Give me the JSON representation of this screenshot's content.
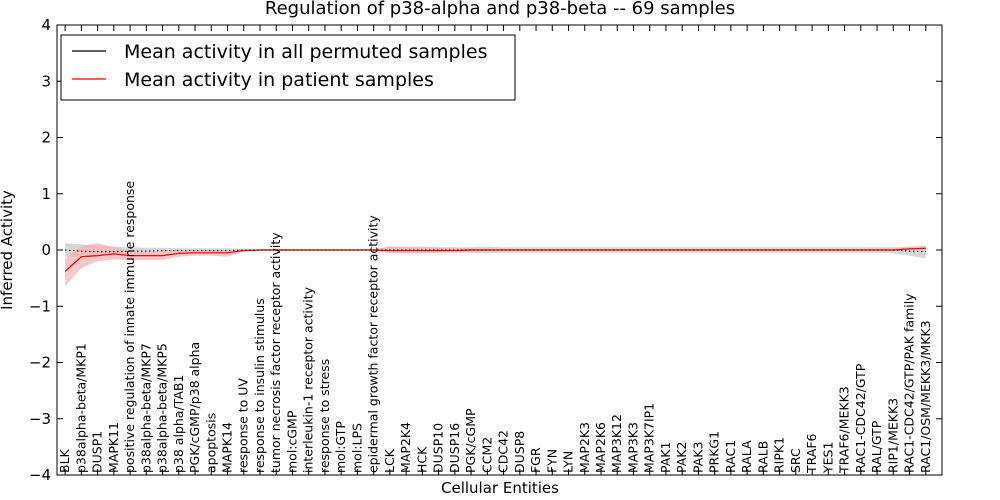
{
  "chart_data": {
    "type": "line",
    "title": "Regulation of p38-alpha and p38-beta -- 69 samples",
    "xlabel": "Cellular Entities",
    "ylabel": "Inferred Activity",
    "ylim": [
      -4,
      4
    ],
    "yticks": [
      4,
      3,
      2,
      1,
      0,
      -1,
      -2,
      -3,
      -4
    ],
    "ytick_labels": [
      "4",
      "3",
      "2",
      "1",
      "0",
      "−1",
      "−2",
      "−3",
      "−4"
    ],
    "legend_position": "upper-left",
    "categories": [
      "BLK",
      "p38alpha-beta/MKP1",
      "DUSP1",
      "MAPK11",
      "positive regulation of innate immune response",
      "p38alpha-beta/MKP7",
      "p38alpha-beta/MKP5",
      "p38 alpha/TAB1",
      "PGK/cGMP/p38 alpha",
      "apoptosis",
      "MAPK14",
      "response to UV",
      "response to insulin stimulus",
      "tumor necrosis factor receptor activity",
      "mol:cGMP",
      "interleukin-1 receptor activity",
      "response to stress",
      "mol:GTP",
      "mol:LPS",
      "epidermal growth factor receptor activity",
      "LCK",
      "MAP2K4",
      "HCK",
      "DUSP10",
      "DUSP16",
      "PGK/cGMP",
      "CCM2",
      "CDC42",
      "DUSP8",
      "FGR",
      "FYN",
      "LYN",
      "MAP2K3",
      "MAP2K6",
      "MAP3K12",
      "MAP3K3",
      "MAP3K7IP1",
      "PAK1",
      "PAK2",
      "PAK3",
      "PRKG1",
      "RAC1",
      "RALA",
      "RALB",
      "RIPK1",
      "SRC",
      "TRAF6",
      "YES1",
      "TRAF6/MEKK3",
      "RAC1-CDC42/GTP",
      "RAL/GTP",
      "RIP1/MEKK3",
      "RAC1-CDC42/GTP/PAK family",
      "RAC1/OSM/MEKK3/MKK3"
    ],
    "series": [
      {
        "name": "Mean activity in all permuted samples",
        "color": "#000000",
        "band_color": "#c8c8c8",
        "values": [
          0.0,
          -0.02,
          -0.03,
          -0.03,
          -0.02,
          -0.02,
          -0.01,
          -0.01,
          -0.01,
          -0.01,
          -0.01,
          0.0,
          0.0,
          0.0,
          0.0,
          0.0,
          0.0,
          0.0,
          0.0,
          0.0,
          0.0,
          0.0,
          0.0,
          0.0,
          0.0,
          0.0,
          0.0,
          0.0,
          0.0,
          0.0,
          0.0,
          0.0,
          0.0,
          0.0,
          0.0,
          0.0,
          0.0,
          0.0,
          0.0,
          0.0,
          0.0,
          0.0,
          0.0,
          0.0,
          0.0,
          0.0,
          0.0,
          0.0,
          0.0,
          0.0,
          0.0,
          0.0,
          -0.02,
          -0.03
        ],
        "band_lower": [
          -0.12,
          -0.12,
          -0.1,
          -0.08,
          -0.06,
          -0.05,
          -0.04,
          -0.04,
          -0.04,
          -0.04,
          -0.03,
          -0.02,
          -0.02,
          -0.02,
          -0.02,
          -0.02,
          -0.02,
          -0.02,
          -0.02,
          -0.02,
          -0.05,
          -0.06,
          -0.06,
          -0.05,
          -0.05,
          -0.05,
          -0.06,
          -0.05,
          -0.05,
          -0.05,
          -0.05,
          -0.05,
          -0.05,
          -0.05,
          -0.05,
          -0.05,
          -0.05,
          -0.05,
          -0.05,
          -0.05,
          -0.05,
          -0.05,
          -0.05,
          -0.05,
          -0.05,
          -0.05,
          -0.05,
          -0.05,
          -0.05,
          -0.05,
          -0.05,
          -0.06,
          -0.1,
          -0.15
        ],
        "band_upper": [
          0.12,
          0.1,
          0.08,
          0.06,
          0.05,
          0.04,
          0.04,
          0.03,
          0.03,
          0.03,
          0.03,
          0.02,
          0.02,
          0.02,
          0.02,
          0.02,
          0.02,
          0.02,
          0.02,
          0.02,
          0.06,
          0.06,
          0.06,
          0.05,
          0.05,
          0.05,
          0.06,
          0.05,
          0.05,
          0.05,
          0.05,
          0.05,
          0.05,
          0.05,
          0.05,
          0.05,
          0.05,
          0.05,
          0.05,
          0.05,
          0.05,
          0.05,
          0.05,
          0.05,
          0.05,
          0.05,
          0.05,
          0.05,
          0.05,
          0.05,
          0.05,
          0.05,
          0.05,
          0.07
        ]
      },
      {
        "name": "Mean activity in patient samples",
        "color": "#ff0000",
        "band_color": "#f5b0b0",
        "values": [
          -0.38,
          -0.12,
          -0.1,
          -0.07,
          -0.1,
          -0.1,
          -0.1,
          -0.06,
          -0.05,
          -0.05,
          -0.05,
          -0.01,
          0.0,
          0.0,
          0.0,
          0.0,
          0.0,
          0.0,
          0.0,
          0.0,
          -0.01,
          -0.01,
          -0.01,
          -0.01,
          -0.01,
          0.0,
          0.0,
          0.0,
          0.0,
          0.0,
          0.0,
          0.0,
          0.0,
          0.0,
          0.0,
          0.0,
          0.0,
          0.0,
          0.0,
          0.0,
          0.0,
          0.0,
          0.0,
          0.0,
          0.0,
          0.0,
          0.0,
          0.0,
          0.0,
          0.0,
          0.0,
          0.0,
          0.02,
          0.03
        ],
        "band_lower": [
          -0.65,
          -0.32,
          -0.2,
          -0.17,
          -0.18,
          -0.18,
          -0.18,
          -0.12,
          -0.1,
          -0.1,
          -0.12,
          -0.03,
          -0.01,
          -0.01,
          -0.01,
          -0.01,
          -0.01,
          -0.01,
          -0.01,
          -0.01,
          -0.06,
          -0.05,
          -0.05,
          -0.04,
          -0.04,
          -0.03,
          -0.02,
          -0.02,
          -0.02,
          -0.02,
          -0.02,
          -0.02,
          -0.02,
          -0.02,
          -0.02,
          -0.02,
          -0.02,
          -0.02,
          -0.02,
          -0.02,
          -0.02,
          -0.02,
          -0.02,
          -0.02,
          -0.02,
          -0.02,
          -0.02,
          -0.02,
          -0.02,
          -0.02,
          -0.02,
          -0.02,
          0.0,
          0.0
        ],
        "band_upper": [
          -0.15,
          0.07,
          0.12,
          0.05,
          -0.02,
          -0.03,
          -0.02,
          -0.01,
          -0.01,
          0.0,
          0.0,
          0.01,
          0.01,
          0.01,
          0.01,
          0.01,
          0.01,
          0.01,
          0.01,
          0.01,
          0.06,
          0.05,
          0.05,
          0.04,
          0.04,
          0.03,
          0.02,
          0.02,
          0.02,
          0.02,
          0.02,
          0.02,
          0.02,
          0.02,
          0.02,
          0.02,
          0.02,
          0.02,
          0.02,
          0.02,
          0.02,
          0.02,
          0.02,
          0.02,
          0.02,
          0.02,
          0.02,
          0.02,
          0.02,
          0.02,
          0.02,
          0.03,
          0.06,
          0.07
        ]
      }
    ]
  }
}
